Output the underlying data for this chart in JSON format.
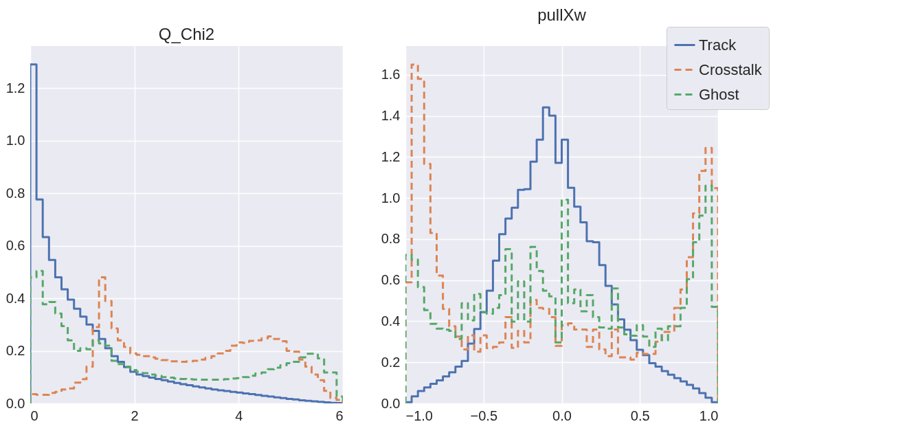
{
  "chart_data": [
    {
      "type": "histogram",
      "title": "Q_Chi2",
      "grid": true,
      "bins": [
        0,
        0.12,
        0.24,
        0.36,
        0.48,
        0.6,
        0.72,
        0.84,
        0.96,
        1.08,
        1.2,
        1.32,
        1.44,
        1.56,
        1.68,
        1.8,
        1.92,
        2.04,
        2.16,
        2.28,
        2.4,
        2.52,
        2.64,
        2.76,
        2.88,
        3,
        3.12,
        3.24,
        3.36,
        3.48,
        3.6,
        3.72,
        3.84,
        3.96,
        4.08,
        4.2,
        4.32,
        4.44,
        4.56,
        4.68,
        4.8,
        4.92,
        5.04,
        5.16,
        5.28,
        5.4,
        5.52,
        5.64,
        5.76,
        5.88,
        6
      ],
      "xlim": [
        0,
        6
      ],
      "xticks": [
        0,
        2,
        4,
        6
      ],
      "ylim": [
        0,
        1.36
      ],
      "yticks": [
        {
          "value": 0,
          "label": "0.0"
        },
        {
          "value": 0.2,
          "label": "0.2"
        },
        {
          "value": 0.4,
          "label": "0.4"
        },
        {
          "value": 0.6,
          "label": "0.6"
        },
        {
          "value": 0.8,
          "label": "0.8"
        },
        {
          "value": 1,
          "label": "1.0"
        },
        {
          "value": 1.2,
          "label": "1.2"
        }
      ],
      "series": [
        {
          "color": "#4c72b0",
          "line_style": "solid",
          "values": [
            1.29,
            0.776,
            0.633,
            0.546,
            0.48,
            0.434,
            0.395,
            0.36,
            0.33,
            0.3,
            0.276,
            0.245,
            0.21,
            0.18,
            0.158,
            0.138,
            0.12,
            0.11,
            0.104,
            0.098,
            0.093,
            0.088,
            0.083,
            0.078,
            0.073,
            0.069,
            0.065,
            0.061,
            0.057,
            0.053,
            0.05,
            0.047,
            0.044,
            0.041,
            0.038,
            0.035,
            0.032,
            0.029,
            0.026,
            0.023,
            0.02,
            0.017,
            0.015,
            0.012,
            0.01,
            0.008,
            0.006,
            0.004,
            0.002,
            0.001
          ]
        },
        {
          "color": "#dd8452",
          "line_style": "dashed",
          "values": [
            0.035,
            0.033,
            0.033,
            0.04,
            0.044,
            0.053,
            0.057,
            0.079,
            0.092,
            0.14,
            0.29,
            0.48,
            0.39,
            0.285,
            0.24,
            0.215,
            0.19,
            0.185,
            0.18,
            0.175,
            0.17,
            0.165,
            0.16,
            0.16,
            0.158,
            0.16,
            0.162,
            0.167,
            0.173,
            0.18,
            0.19,
            0.2,
            0.22,
            0.232,
            0.23,
            0.238,
            0.24,
            0.248,
            0.255,
            0.245,
            0.237,
            0.2,
            0.197,
            0.167,
            0.14,
            0.11,
            0.088,
            0.048,
            0.02,
            0.013
          ]
        },
        {
          "color": "#55a868",
          "line_style": "dashed",
          "values": [
            0.48,
            0.504,
            0.377,
            0.386,
            0.342,
            0.294,
            0.24,
            0.2,
            0.21,
            0.206,
            0.24,
            0.228,
            0.22,
            0.162,
            0.15,
            0.14,
            0.127,
            0.12,
            0.115,
            0.11,
            0.105,
            0.1,
            0.098,
            0.095,
            0.093,
            0.092,
            0.091,
            0.09,
            0.09,
            0.09,
            0.09,
            0.092,
            0.095,
            0.096,
            0.1,
            0.105,
            0.114,
            0.118,
            0.13,
            0.136,
            0.145,
            0.153,
            0.158,
            0.175,
            0.189,
            0.189,
            0.171,
            0.118,
            0.118,
            0.026
          ]
        }
      ]
    },
    {
      "type": "histogram",
      "title": "pullXw",
      "grid": true,
      "legend": "top right",
      "bins": [
        -1,
        -0.96,
        -0.92,
        -0.88,
        -0.84,
        -0.8,
        -0.76,
        -0.72,
        -0.68,
        -0.64,
        -0.6,
        -0.56,
        -0.52,
        -0.48,
        -0.44,
        -0.4,
        -0.36,
        -0.32,
        -0.28,
        -0.24,
        -0.2,
        -0.16,
        -0.12,
        -0.08,
        -0.04,
        0,
        0.04,
        0.08,
        0.12,
        0.16,
        0.2,
        0.24,
        0.28,
        0.32,
        0.36,
        0.4,
        0.44,
        0.48,
        0.52,
        0.56,
        0.6,
        0.64,
        0.68,
        0.72,
        0.76,
        0.8,
        0.84,
        0.88,
        0.92,
        0.96,
        1
      ],
      "xlim": [
        -1,
        1
      ],
      "xticks": [
        {
          "value": -1,
          "label": "−1.0"
        },
        {
          "value": -0.5,
          "label": "−0.5"
        },
        {
          "value": 0,
          "label": "0.0"
        },
        0.5,
        {
          "value": 1,
          "label": "1.0"
        }
      ],
      "ylim": [
        0,
        1.74
      ],
      "yticks": [
        {
          "value": 0,
          "label": "0.0"
        },
        {
          "value": 0.2,
          "label": "0.2"
        },
        {
          "value": 0.4,
          "label": "0.4"
        },
        {
          "value": 0.6,
          "label": "0.6"
        },
        {
          "value": 0.8,
          "label": "0.8"
        },
        {
          "value": 1,
          "label": "1.0"
        },
        {
          "value": 1.2,
          "label": "1.2"
        },
        {
          "value": 1.4,
          "label": "1.4"
        },
        {
          "value": 1.6,
          "label": "1.6"
        }
      ],
      "series": [
        {
          "name": "Track",
          "color": "#4c72b0",
          "line_style": "solid",
          "values": [
            0.006,
            0.034,
            0.06,
            0.078,
            0.095,
            0.112,
            0.131,
            0.151,
            0.179,
            0.207,
            0.291,
            0.362,
            0.445,
            0.549,
            0.695,
            0.824,
            0.9,
            0.953,
            1.04,
            1.043,
            1.177,
            1.284,
            1.441,
            1.401,
            1.171,
            1.284,
            1.05,
            0.958,
            0.882,
            0.79,
            0.785,
            0.673,
            0.572,
            0.482,
            0.409,
            0.359,
            0.308,
            0.261,
            0.235,
            0.196,
            0.179,
            0.157,
            0.14,
            0.123,
            0.107,
            0.09,
            0.073,
            0.05,
            0.028,
            0.006
          ]
        },
        {
          "name": "Crosstalk",
          "color": "#dd8452",
          "line_style": "dashed",
          "values": [
            0.59,
            1.65,
            1.58,
            1.166,
            0.83,
            0.622,
            0.46,
            0.376,
            0.325,
            0.263,
            0.331,
            0.252,
            0.331,
            0.269,
            0.275,
            0.297,
            0.42,
            0.27,
            0.353,
            0.297,
            0.504,
            0.465,
            0.46,
            0.42,
            0.28,
            0.38,
            0.39,
            0.36,
            0.36,
            0.275,
            0.36,
            0.263,
            0.23,
            0.36,
            0.224,
            0.224,
            0.213,
            0.247,
            0.241,
            0.241,
            0.3,
            0.348,
            0.348,
            0.465,
            0.555,
            0.712,
            0.925,
            1.132,
            1.244,
            1.048
          ]
        },
        {
          "name": "Ghost",
          "color": "#55a868",
          "line_style": "dashed",
          "values": [
            0.723,
            0.7,
            0.566,
            0.454,
            0.387,
            0.364,
            0.359,
            0.353,
            0.314,
            0.488,
            0.404,
            0.533,
            0.443,
            0.437,
            0.465,
            0.527,
            0.751,
            0.398,
            0.594,
            0.398,
            0.762,
            0.645,
            0.549,
            0.521,
            0.297,
            0.992,
            0.488,
            0.555,
            0.448,
            0.527,
            0.42,
            0.37,
            0.364,
            0.56,
            0.37,
            0.336,
            0.33,
            0.381,
            0.325,
            0.275,
            0.364,
            0.308,
            0.376,
            0.376,
            0.465,
            0.605,
            0.785,
            0.914,
            1.06,
            0.47
          ]
        }
      ]
    }
  ]
}
